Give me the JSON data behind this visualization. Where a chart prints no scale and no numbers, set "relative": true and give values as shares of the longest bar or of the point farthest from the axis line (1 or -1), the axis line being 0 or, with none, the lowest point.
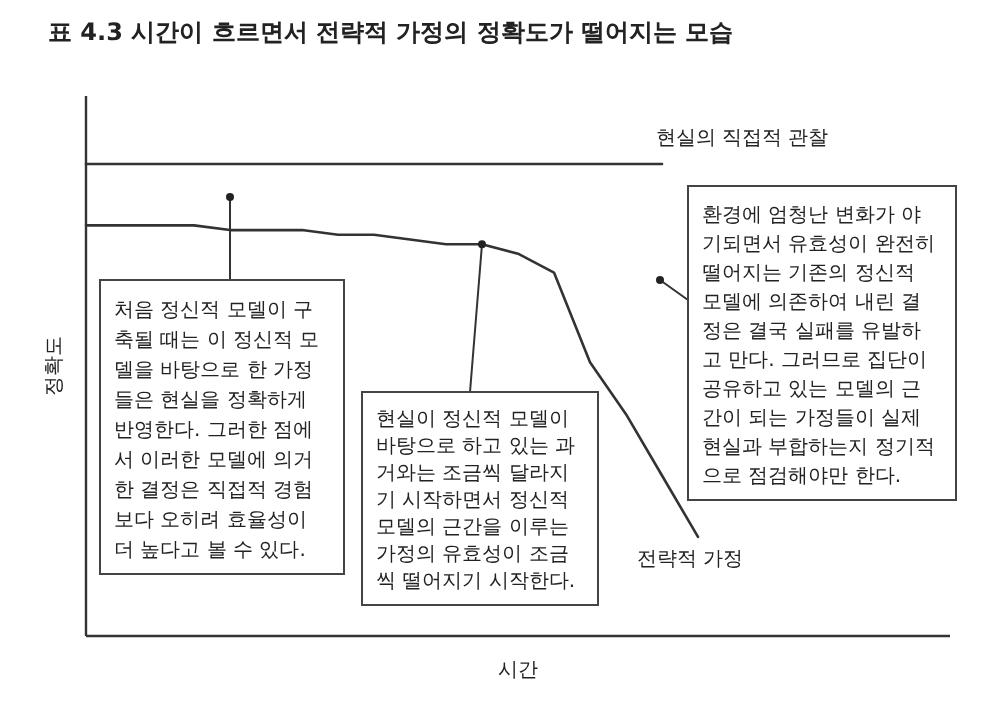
{
  "chart_data": {
    "type": "line",
    "title": "표 4.3  시간이 흐르면서 전략적 가정의 정확도가 떨어지는 모습",
    "xlabel": "시간",
    "ylabel": "정확도",
    "relative": true,
    "categories": [
      null,
      null,
      null,
      null,
      null,
      null,
      null,
      null,
      null,
      null,
      null,
      null,
      null,
      null,
      null,
      null,
      null,
      null,
      null,
      null,
      null,
      null,
      null,
      null,
      null
    ],
    "series": [
      {
        "name": "현실의 직접적 관찰",
        "color": "#333333",
        "values": [
          1,
          1,
          1,
          1,
          1,
          1,
          1,
          1,
          1,
          1,
          1,
          1,
          1,
          1,
          1,
          1,
          1,
          null,
          null,
          null,
          null,
          null,
          null,
          null,
          null
        ]
      },
      {
        "name": "전략적 가정",
        "color": "#333333",
        "values": [
          0.87,
          0.87,
          0.87,
          0.87,
          0.86,
          0.86,
          0.86,
          0.85,
          0.85,
          0.84,
          0.83,
          0.83,
          0.81,
          0.77,
          0.58,
          0.47,
          0.34,
          0.21,
          null,
          null,
          null,
          null,
          null,
          null,
          null
        ]
      }
    ],
    "annotations": [
      "처음 정신적 모델이 구\n축될 때는 이 정신적 모\n델을 바탕으로 한 가정\n들은 현실을 정확하게\n반영한다. 그러한 점에\n서 이러한 모델에 의거\n한 결정은 직접적 경험\n보다 오히려 효율성이\n더 높다고 볼 수 있다.",
      "현실이 정신적 모델이\n바탕으로 하고 있는 과\n거와는 조금씩 달라지\n기 시작하면서 정신적\n모델의 근간을 이루는\n가정의 유효성이 조금\n씩 떨어지기 시작한다.",
      "환경에 엄청난 변화가 야\n기되면서 유효성이 완전히\n떨어지는 기존의 정신적\n모델에 의존하여 내린 결\n정은 결국 실패를 유발하\n고 만다. 그러므로 집단이\n공유하고 있는 모델의 근\n간이 되는 가정들이 실제\n현실과 부합하는지 정기적\n으로 점검해야만 한다."
    ]
  }
}
